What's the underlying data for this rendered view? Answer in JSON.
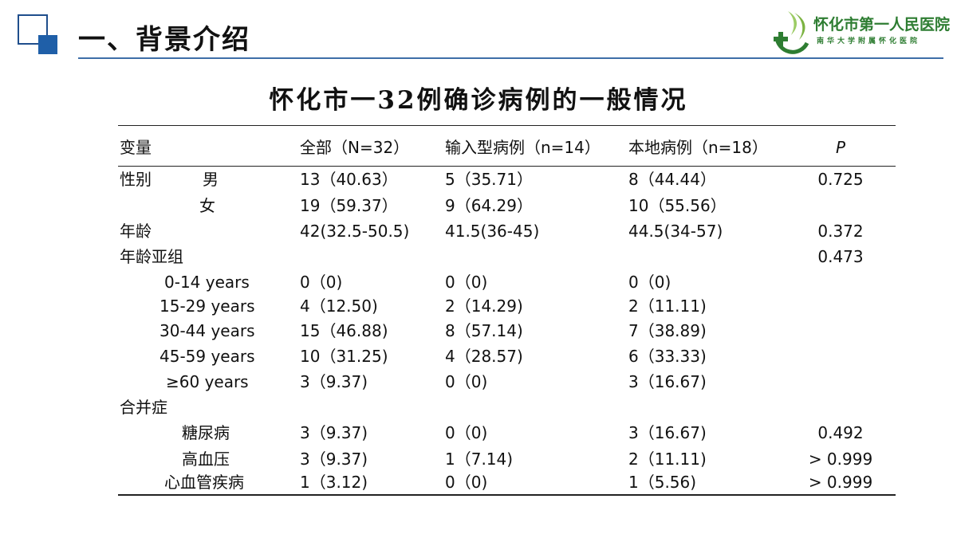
{
  "header": {
    "section_title": "一、背景介绍",
    "logo_name": "怀化市第一人民医院",
    "logo_sub": "南华大学附属怀化医院"
  },
  "table": {
    "title": "怀化市一32例确诊病例的一般情况",
    "columns": [
      "变量",
      "全部（N=32）",
      "输入型病例（n=14）",
      "本地病例（n=18）",
      "P"
    ],
    "rows": [
      {
        "label": "性别",
        "sub": "男",
        "all": "13（40.63）",
        "imported": "5（35.71）",
        "local": "8（44.44）",
        "p": "0.725"
      },
      {
        "label": "",
        "sub": "女",
        "all": "19（59.37）",
        "imported": "9（64.29）",
        "local": "10（55.56）",
        "p": ""
      },
      {
        "label": "年龄",
        "sub": "",
        "all": "42(32.5-50.5)",
        "imported": "41.5(36-45)",
        "local": "44.5(34-57)",
        "p": "0.372"
      },
      {
        "label": "年龄亚组",
        "sub": "",
        "all": "",
        "imported": "",
        "local": "",
        "p": "0.473"
      },
      {
        "label": "0-14 years",
        "sub": "",
        "all": "0（0)",
        "imported": "0（0)",
        "local": "0（0)",
        "p": ""
      },
      {
        "label": "15-29 years",
        "sub": "",
        "all": "4（12.50)",
        "imported": "2（14.29)",
        "local": "2（11.11)",
        "p": ""
      },
      {
        "label": "30-44 years",
        "sub": "",
        "all": "15（46.88)",
        "imported": "8（57.14)",
        "local": "7（38.89)",
        "p": ""
      },
      {
        "label": "45-59 years",
        "sub": "",
        "all": "10（31.25)",
        "imported": "4（28.57)",
        "local": "6（33.33)",
        "p": ""
      },
      {
        "label": "≥60 years",
        "sub": "",
        "all": "3（9.37)",
        "imported": "0（0)",
        "local": "3（16.67)",
        "p": ""
      },
      {
        "label": "合并症",
        "sub": "",
        "all": "",
        "imported": "",
        "local": "",
        "p": ""
      },
      {
        "label": "糖尿病",
        "sub": "",
        "all": "3（9.37)",
        "imported": "0（0)",
        "local": "3（16.67)",
        "p": "0.492"
      },
      {
        "label": "高血压",
        "sub": "",
        "all": "3（9.37)",
        "imported": "1（7.14)",
        "local": "2（11.11)",
        "p": "> 0.999"
      },
      {
        "label": "心血管疾病",
        "sub": "",
        "all": "1（3.12)",
        "imported": "0（0)",
        "local": "1（5.56)",
        "p": "> 0.999"
      }
    ]
  },
  "colors": {
    "accent_blue": "#1f5fa8",
    "logo_green": "#2e7d32"
  }
}
